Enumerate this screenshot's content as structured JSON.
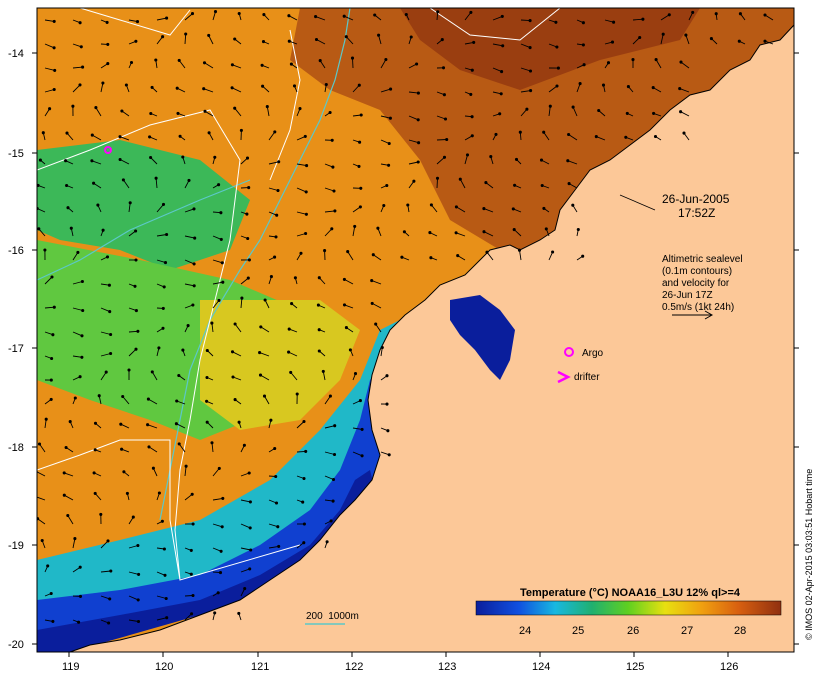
{
  "map": {
    "lon_ticks": [
      "119",
      "120",
      "121",
      "122",
      "123",
      "124",
      "125",
      "126"
    ],
    "lat_ticks": [
      "-14",
      "-15",
      "-16",
      "-17",
      "-18",
      "-19",
      "-20"
    ]
  },
  "annotations": {
    "date": "26-Jun-2005",
    "time": "17:52Z",
    "altimetry_lines": [
      "Altimetric sealevel",
      "(0.1m contours)",
      "and velocity for",
      "26-Jun 17Z",
      "0.5m/s (1kt 24h)"
    ],
    "argo_label": "Argo",
    "drifter_label": "drifter",
    "depth_legend": "200  1000m"
  },
  "colorbar": {
    "title": "Temperature (°C) NOAA16_L3U 12% ql>=4",
    "ticks": [
      "24",
      "25",
      "26",
      "27",
      "28"
    ]
  },
  "credit": "© IMOS 02-Apr-2015 03:03:51 Hobart time",
  "colors": {
    "land": "#fcc898",
    "warm": "#e08010",
    "hot": "#a04010",
    "cool": "#20b070",
    "cold": "#0a1e9c",
    "argo": "#ff00ff",
    "contour": "#5cc8c8"
  }
}
